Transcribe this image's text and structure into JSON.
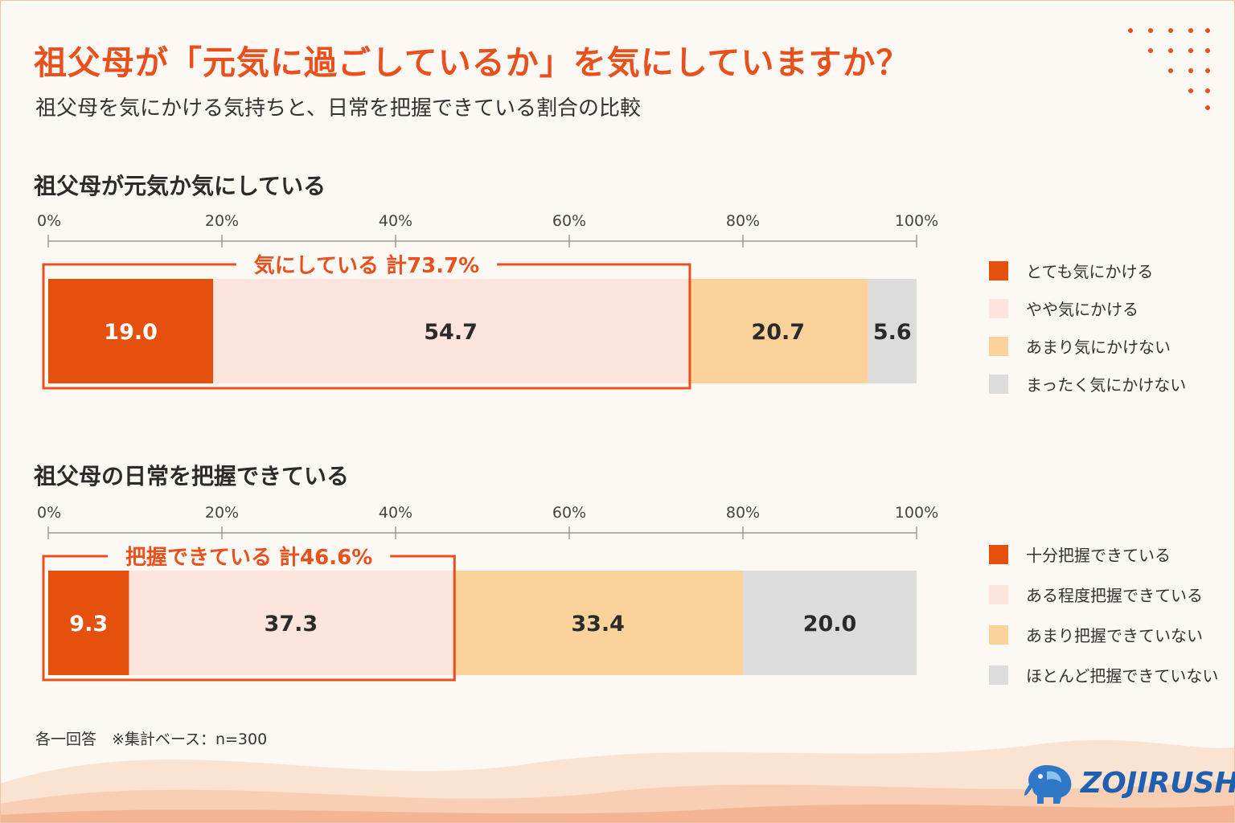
{
  "title": "祖父母が「元気に過ごしているか」を気にしていますか？",
  "subtitle": "祖父母を気にかける気持ちと、日常を把握できている割合の比較",
  "colors": {
    "accent": "#e8501d",
    "c1": "#e5500f",
    "c2": "#fde4dc",
    "c3": "#fcd29b",
    "c4": "#dcdcdc"
  },
  "footnote": "各一回答　※集計ベース：n=300",
  "logo_text": "ZOJIRUSHI",
  "chart_data": [
    {
      "type": "bar",
      "orientation": "horizontal-stacked",
      "title": "祖父母が元気か気にしている",
      "ticks": [
        "0%",
        "20%",
        "40%",
        "60%",
        "80%",
        "100%"
      ],
      "xlim": [
        0,
        100
      ],
      "series": [
        {
          "name": "とても気にかける",
          "value": 19.0,
          "label": "19.0",
          "color": "#e5500f",
          "text_color": "#ffffff"
        },
        {
          "name": "やや気にかける",
          "value": 54.7,
          "label": "54.7",
          "color": "#fde4dc",
          "text_color": "#2b2b2b"
        },
        {
          "name": "あまり気にかけない",
          "value": 20.7,
          "label": "20.7",
          "color": "#fcd29b",
          "text_color": "#2b2b2b"
        },
        {
          "name": "まったく気にかけない",
          "value": 5.6,
          "label": "5.6",
          "color": "#dcdcdc",
          "text_color": "#2b2b2b"
        }
      ],
      "bracket": {
        "label": "気にしている  計73.7%",
        "value": 73.7
      }
    },
    {
      "type": "bar",
      "orientation": "horizontal-stacked",
      "title": "祖父母の日常を把握できている",
      "ticks": [
        "0%",
        "20%",
        "40%",
        "60%",
        "80%",
        "100%"
      ],
      "xlim": [
        0,
        100
      ],
      "series": [
        {
          "name": "十分把握できている",
          "value": 9.3,
          "label": "9.3",
          "color": "#e5500f",
          "text_color": "#ffffff"
        },
        {
          "name": "ある程度把握できている",
          "value": 37.3,
          "label": "37.3",
          "color": "#fde4dc",
          "text_color": "#2b2b2b"
        },
        {
          "name": "あまり把握できていない",
          "value": 33.4,
          "label": "33.4",
          "color": "#fcd29b",
          "text_color": "#2b2b2b"
        },
        {
          "name": "ほとんど把握できていない",
          "value": 20.0,
          "label": "20.0",
          "color": "#dcdcdc",
          "text_color": "#2b2b2b"
        }
      ],
      "bracket": {
        "label": "把握できている  計46.6%",
        "value": 46.6
      }
    }
  ]
}
